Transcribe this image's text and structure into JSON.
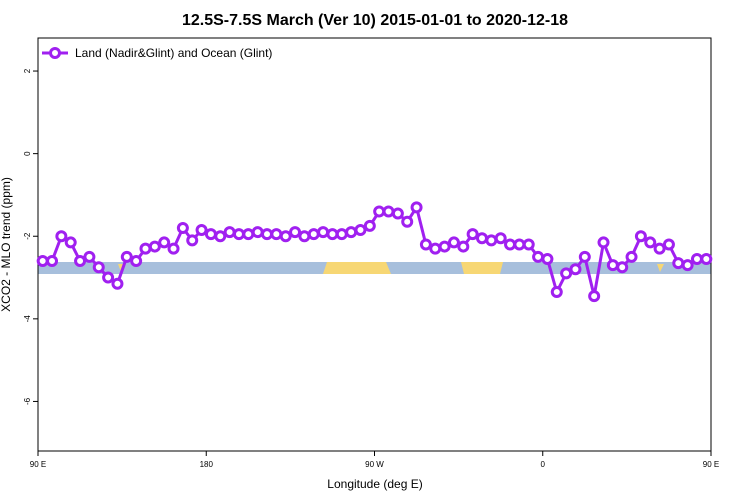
{
  "chart_data": {
    "type": "line",
    "title": "12.5S-7.5S March (Ver 10)   2015-01-01 to 2020-12-18",
    "xlabel": "Longitude (deg E)",
    "ylabel": "XCO2 - MLO trend (ppm)",
    "xlim": [
      90,
      450
    ],
    "ylim": [
      -7.2,
      2.8
    ],
    "x_ticks": [
      {
        "value": 90,
        "label": "90 E"
      },
      {
        "value": 180,
        "label": "180"
      },
      {
        "value": 270,
        "label": "90 W"
      },
      {
        "value": 360,
        "label": "0"
      },
      {
        "value": 450,
        "label": "90 E"
      }
    ],
    "y_ticks": [
      {
        "value": 2,
        "label": "2"
      },
      {
        "value": 0,
        "label": "0"
      },
      {
        "value": -2,
        "label": "-2"
      },
      {
        "value": -4,
        "label": "-4"
      },
      {
        "value": -6,
        "label": "-6"
      }
    ],
    "grid": false,
    "legend_position": "top-left",
    "series": [
      {
        "name": "Land (Nadir&Glint) and Ocean (Glint)",
        "color": "#a020f0",
        "x": [
          92.5,
          97.5,
          102.5,
          107.5,
          112.5,
          117.5,
          122.5,
          127.5,
          132.5,
          137.5,
          142.5,
          147.5,
          152.5,
          157.5,
          162.5,
          167.5,
          172.5,
          177.5,
          182.5,
          187.5,
          192.5,
          197.5,
          202.5,
          207.5,
          212.5,
          217.5,
          222.5,
          227.5,
          232.5,
          237.5,
          242.5,
          247.5,
          252.5,
          257.5,
          262.5,
          267.5,
          272.5,
          277.5,
          282.5,
          287.5,
          292.5,
          297.5,
          302.5,
          307.5,
          312.5,
          317.5,
          322.5,
          327.5,
          332.5,
          337.5,
          342.5,
          347.5,
          352.5,
          357.5,
          362.5,
          367.5,
          372.5,
          377.5,
          382.5,
          387.5,
          392.5,
          397.5,
          402.5,
          407.5,
          412.5,
          417.5,
          422.5,
          427.5,
          432.5,
          437.5,
          442.5,
          447.5
        ],
        "values": [
          -2.6,
          -2.6,
          -2.0,
          -2.15,
          -2.6,
          -2.5,
          -2.75,
          -3.0,
          -3.15,
          -2.5,
          -2.6,
          -2.3,
          -2.25,
          -2.15,
          -2.3,
          -1.8,
          -2.1,
          -1.85,
          -1.95,
          -2.0,
          -1.9,
          -1.95,
          -1.95,
          -1.9,
          -1.95,
          -1.95,
          -2.0,
          -1.9,
          -2.0,
          -1.95,
          -1.9,
          -1.95,
          -1.95,
          -1.9,
          -1.85,
          -1.75,
          -1.4,
          -1.4,
          -1.45,
          -1.65,
          -1.3,
          -2.2,
          -2.3,
          -2.25,
          -2.15,
          -2.25,
          -1.95,
          -2.05,
          -2.1,
          -2.05,
          -2.2,
          -2.2,
          -2.2,
          -2.5,
          -2.55,
          -3.35,
          -2.9,
          -2.8,
          -2.5,
          -3.45,
          -2.15,
          -2.7,
          -2.75,
          -2.5,
          -2.0,
          -2.15,
          -2.3,
          -2.2,
          -2.65,
          -2.7,
          -2.55,
          -2.55
        ]
      }
    ]
  }
}
